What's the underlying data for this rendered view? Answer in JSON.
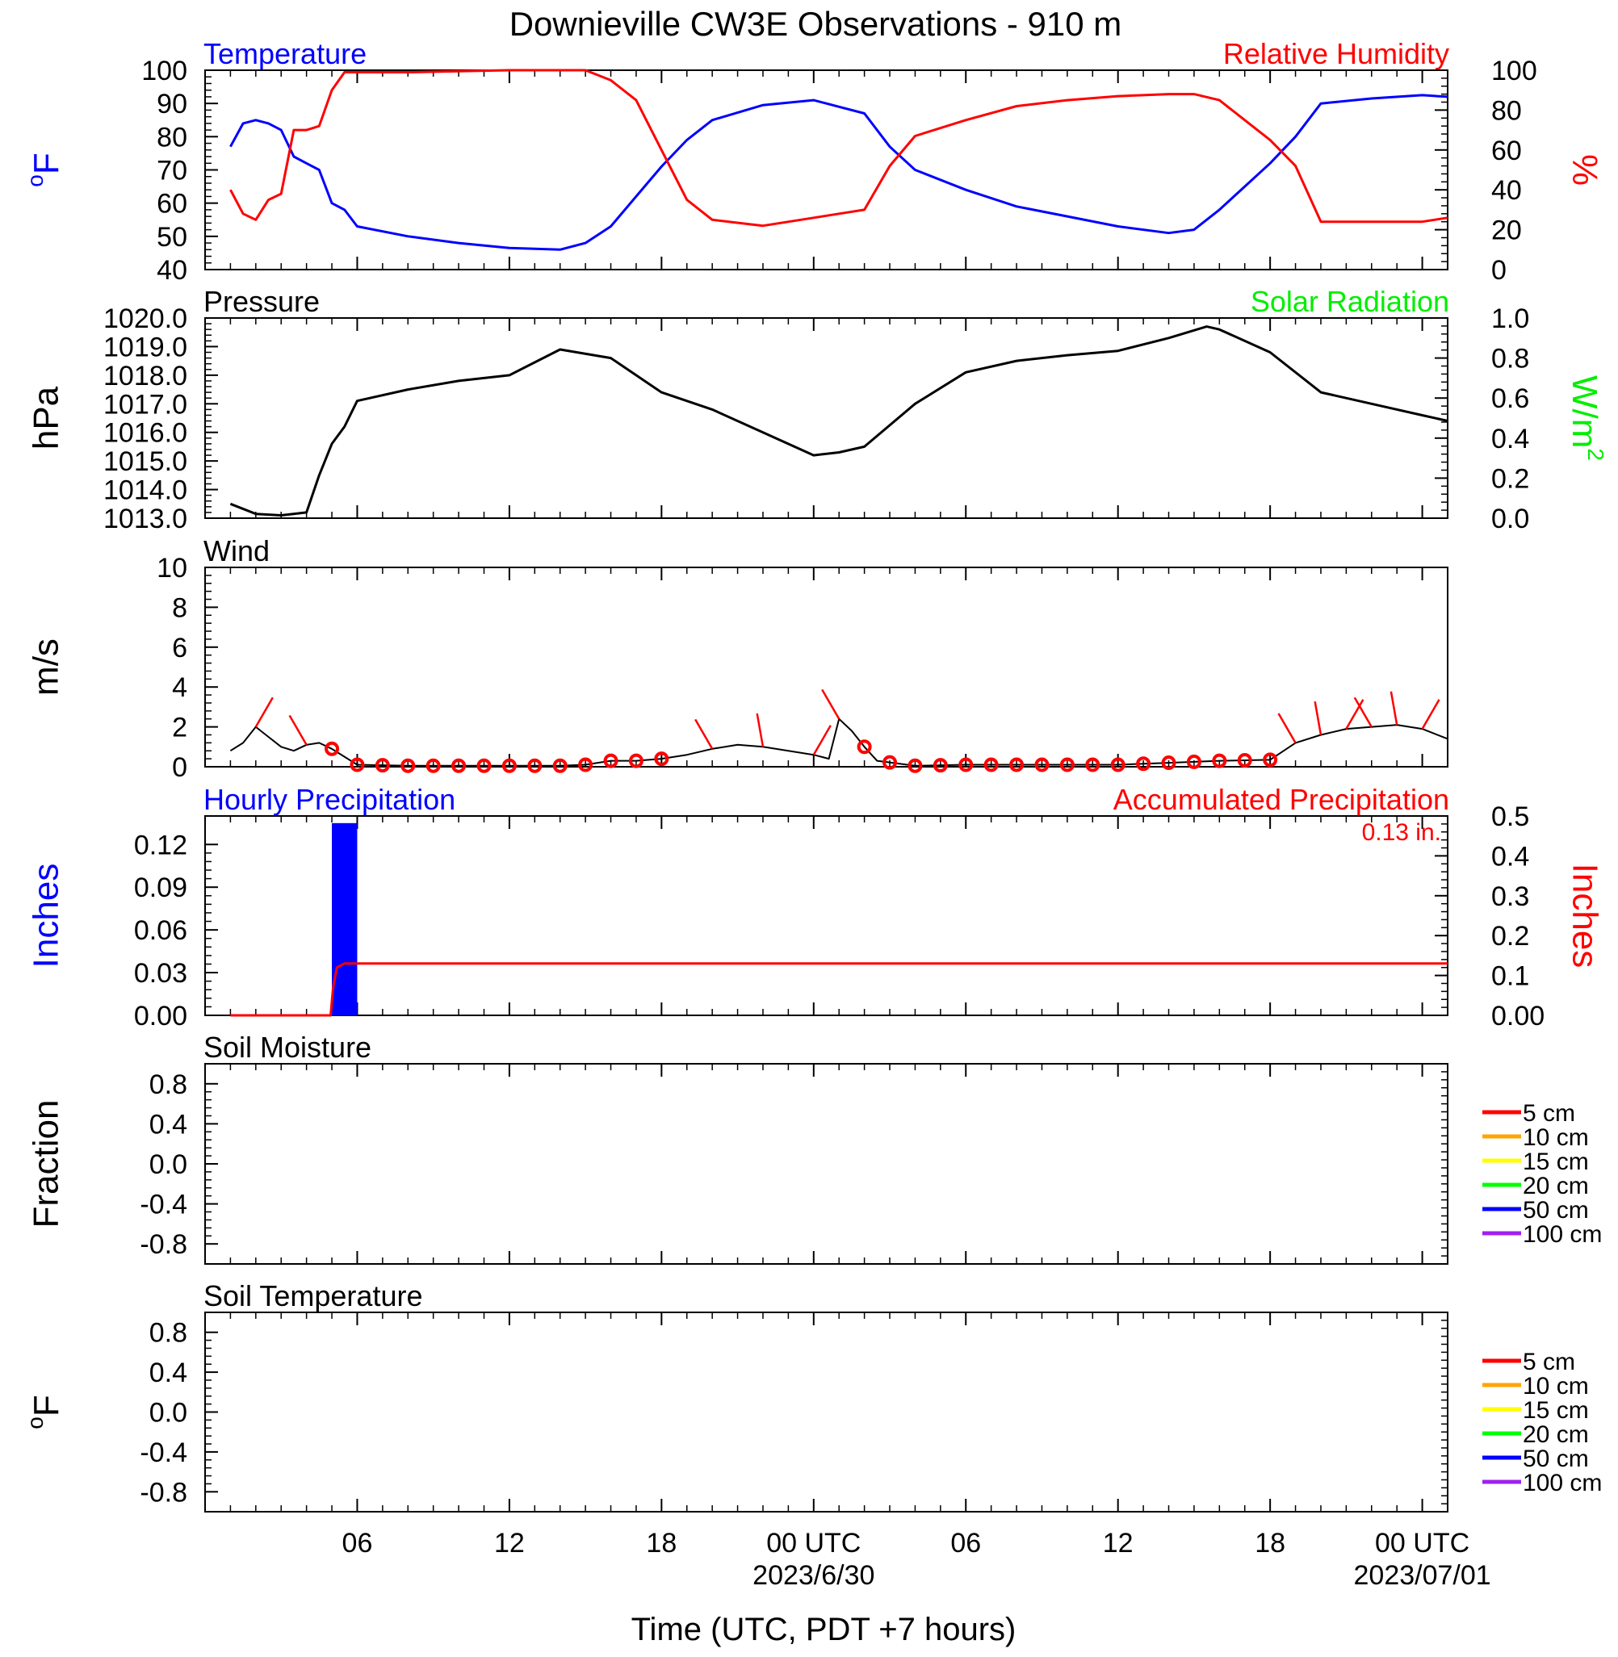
{
  "title": "Downieville CW3E Observations - 910 m",
  "xlabel": "Time (UTC, PDT +7 hours)",
  "x_ticks": [
    {
      "hour": 6,
      "label": "06",
      "sublabel": ""
    },
    {
      "hour": 12,
      "label": "12",
      "sublabel": ""
    },
    {
      "hour": 18,
      "label": "18",
      "sublabel": ""
    },
    {
      "hour": 24,
      "label": "00 UTC",
      "sublabel": "2023/6/30"
    },
    {
      "hour": 30,
      "label": "06",
      "sublabel": ""
    },
    {
      "hour": 36,
      "label": "12",
      "sublabel": ""
    },
    {
      "hour": 42,
      "label": "18",
      "sublabel": ""
    },
    {
      "hour": 48,
      "label": "00 UTC",
      "sublabel": "2023/07/01"
    }
  ],
  "colors": {
    "temperature": "#0000ff",
    "humidity": "#ff0000",
    "pressure": "#000000",
    "solar": "#00ee00",
    "wind": "#000000",
    "wind_barb": "#ff0000",
    "hourly_precip": "#0000ff",
    "accum_precip": "#ff0000",
    "soil_levels": [
      "#ff0000",
      "#ffa500",
      "#ffff00",
      "#00ff00",
      "#0000ff",
      "#a020f0"
    ]
  },
  "chart_data": [
    {
      "id": "temp_rh",
      "type": "line",
      "left_title": "Temperature",
      "right_title": "Relative Humidity",
      "ylabel_left": "oF",
      "ylabel_right": "%",
      "ylim_left": [
        40,
        100
      ],
      "ylim_right": [
        0,
        100
      ],
      "yticks_left": [
        "40",
        "50",
        "60",
        "70",
        "80",
        "90",
        "100"
      ],
      "yticks_right": [
        "0",
        "20",
        "40",
        "60",
        "80",
        "100"
      ],
      "x_hours": [
        1,
        1.5,
        2,
        2.5,
        3,
        3.5,
        4,
        4.5,
        5,
        5.5,
        6,
        8,
        10,
        12,
        14,
        15,
        16,
        17,
        18,
        19,
        20,
        22,
        24,
        25,
        26,
        27,
        28,
        30,
        32,
        34,
        36,
        38,
        39,
        40,
        41,
        42,
        43,
        44,
        46,
        48,
        49
      ],
      "series": [
        {
          "name": "Temperature",
          "axis": "left",
          "values": [
            77,
            84,
            85,
            84,
            82,
            74,
            72,
            70,
            60,
            58,
            53,
            50,
            48,
            46.5,
            46,
            48,
            53,
            62,
            71,
            79,
            85,
            89.5,
            91,
            89,
            87,
            77,
            70,
            64,
            59,
            56,
            53,
            51,
            52,
            58,
            65,
            72,
            80,
            90,
            91.5,
            92.5,
            92
          ]
        },
        {
          "name": "Relative Humidity",
          "axis": "right",
          "values": [
            40,
            28,
            25,
            35,
            38,
            70,
            70,
            72,
            90,
            99,
            99,
            99,
            99.5,
            100,
            100,
            100,
            95,
            85,
            60,
            35,
            25,
            22,
            26,
            28,
            30,
            52,
            67,
            75,
            82,
            85,
            87,
            88,
            88,
            85,
            75,
            65,
            52,
            24,
            24,
            24,
            26
          ]
        }
      ]
    },
    {
      "id": "pressure_solar",
      "type": "line",
      "left_title": "Pressure",
      "right_title": "Solar Radiation",
      "ylabel_left": "hPa",
      "ylabel_right": "W/m2",
      "ylim_left": [
        1013,
        1020
      ],
      "ylim_right": [
        0,
        1
      ],
      "yticks_left": [
        "1013.0",
        "1014.0",
        "1015.0",
        "1016.0",
        "1017.0",
        "1018.0",
        "1019.0",
        "1020.0"
      ],
      "yticks_right": [
        "0.0",
        "0.2",
        "0.4",
        "0.6",
        "0.8",
        "1.0"
      ],
      "x_hours": [
        1,
        2,
        3,
        4,
        4.5,
        5,
        5.5,
        6,
        8,
        10,
        12,
        14,
        16,
        18,
        20,
        22,
        24,
        25,
        26,
        28,
        30,
        32,
        34,
        36,
        38,
        39.5,
        40,
        42,
        44,
        46,
        48,
        49
      ],
      "series": [
        {
          "name": "Pressure",
          "axis": "left",
          "values": [
            1013.5,
            1013.15,
            1013.1,
            1013.2,
            1014.5,
            1015.6,
            1016.2,
            1017.1,
            1017.5,
            1017.8,
            1018.0,
            1018.9,
            1018.6,
            1017.4,
            1016.8,
            1016.0,
            1015.2,
            1015.3,
            1015.5,
            1017.0,
            1018.1,
            1018.5,
            1018.7,
            1018.85,
            1019.3,
            1019.7,
            1019.6,
            1018.8,
            1017.4,
            1017.0,
            1016.6,
            1016.4
          ]
        }
      ]
    },
    {
      "id": "wind",
      "type": "line",
      "left_title": "Wind",
      "ylabel_left": "m/s",
      "ylim_left": [
        0,
        10
      ],
      "yticks_left": [
        "0",
        "2",
        "4",
        "6",
        "8",
        "10"
      ],
      "x_hours": [
        1,
        1.5,
        2,
        2.5,
        3,
        3.5,
        4,
        4.5,
        5,
        5.5,
        6,
        8,
        10,
        12,
        14,
        15,
        16,
        17,
        18,
        19,
        20,
        21,
        22,
        23,
        24,
        24.6,
        25,
        25.5,
        26,
        26.5,
        28,
        30,
        32,
        34,
        36,
        38,
        40,
        42,
        43,
        44,
        45,
        46,
        47,
        48,
        49
      ],
      "series": [
        {
          "name": "Wind",
          "axis": "left",
          "values": [
            0.8,
            1.2,
            2.0,
            1.5,
            1.0,
            0.8,
            1.1,
            1.2,
            0.9,
            0.5,
            0.1,
            0.05,
            0.05,
            0.05,
            0.05,
            0.1,
            0.3,
            0.3,
            0.4,
            0.6,
            0.9,
            1.1,
            1.0,
            0.8,
            0.6,
            0.4,
            2.4,
            1.8,
            1.0,
            0.3,
            0.05,
            0.1,
            0.1,
            0.1,
            0.1,
            0.2,
            0.3,
            0.35,
            1.2,
            1.6,
            1.9,
            2.0,
            2.1,
            1.9,
            1.4
          ]
        }
      ],
      "barbs_x": [
        2,
        4,
        5,
        6,
        7,
        8,
        9,
        10,
        11,
        12,
        13,
        14,
        15,
        16,
        17,
        18,
        20,
        22,
        24,
        25,
        26,
        27,
        28,
        29,
        30,
        31,
        32,
        33,
        34,
        35,
        36,
        37,
        38,
        39,
        40,
        41,
        42,
        43,
        44,
        45,
        46,
        47,
        48
      ],
      "barbs_calm": [
        false,
        false,
        true,
        true,
        true,
        true,
        true,
        true,
        true,
        true,
        true,
        true,
        true,
        true,
        true,
        true,
        false,
        false,
        false,
        false,
        true,
        true,
        true,
        true,
        true,
        true,
        true,
        true,
        true,
        true,
        true,
        true,
        true,
        true,
        true,
        true,
        true,
        false,
        false,
        false,
        false,
        false,
        false
      ]
    },
    {
      "id": "precip",
      "type": "bar",
      "left_title": "Hourly Precipitation",
      "right_title": "Accumulated Precipitation",
      "annotation": "0.13 in.",
      "ylabel_left": "Inches",
      "ylabel_right": "Inches",
      "ylim_left": [
        0,
        0.14
      ],
      "ylim_right": [
        0,
        0.5
      ],
      "yticks_left": [
        "0.00",
        "0.03",
        "0.06",
        "0.09",
        "0.12"
      ],
      "yticks_right": [
        "0.00",
        "0.1",
        "0.2",
        "0.3",
        "0.4",
        "0.5"
      ],
      "bars": [
        {
          "x_start": 5,
          "x_end": 6,
          "value": 0.135
        }
      ],
      "accum_x_hours": [
        1,
        4.95,
        5.05,
        5.2,
        5.5,
        6,
        49
      ],
      "accum_values": [
        0,
        0,
        0.07,
        0.12,
        0.13,
        0.13,
        0.13
      ]
    },
    {
      "id": "soil_moisture",
      "type": "line",
      "left_title": "Soil Moisture",
      "ylabel_left": "Fraction",
      "ylim_left": [
        -1,
        1
      ],
      "yticks_left": [
        "-0.8",
        "-0.4",
        "0.0",
        "0.4",
        "0.8"
      ],
      "legend": [
        "5 cm",
        "10 cm",
        "15 cm",
        "20 cm",
        "50 cm",
        "100 cm"
      ],
      "series": []
    },
    {
      "id": "soil_temperature",
      "type": "line",
      "left_title": "Soil Temperature",
      "ylabel_left": "oF",
      "ylim_left": [
        -1,
        1
      ],
      "yticks_left": [
        "-0.8",
        "-0.4",
        "0.0",
        "0.4",
        "0.8"
      ],
      "legend": [
        "5 cm",
        "10 cm",
        "15 cm",
        "20 cm",
        "50 cm",
        "100 cm"
      ],
      "series": []
    }
  ]
}
